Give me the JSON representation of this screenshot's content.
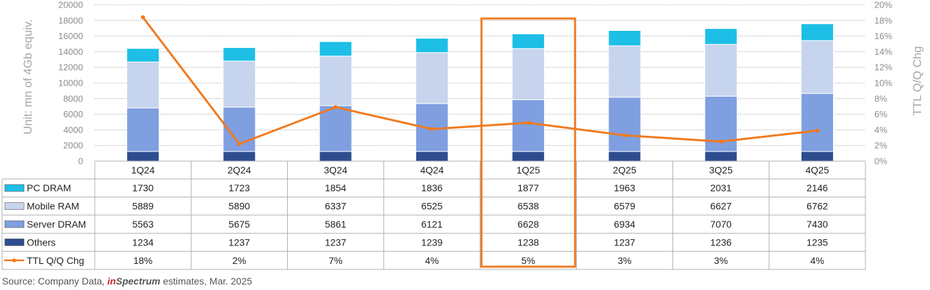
{
  "chart_data": {
    "type": "bar",
    "stacked": true,
    "categories": [
      "1Q24",
      "2Q24",
      "3Q24",
      "4Q24",
      "1Q25",
      "2Q25",
      "3Q25",
      "4Q25"
    ],
    "series": [
      {
        "name": "Others",
        "values": [
          1234,
          1237,
          1237,
          1239,
          1238,
          1237,
          1236,
          1235
        ],
        "color": "#2e4d8f"
      },
      {
        "name": "Server DRAM",
        "values": [
          5563,
          5675,
          5861,
          6121,
          6628,
          6934,
          7070,
          7430
        ],
        "color": "#7f9fe0"
      },
      {
        "name": "Mobile RAM",
        "values": [
          5889,
          5890,
          6337,
          6525,
          6538,
          6579,
          6627,
          6762
        ],
        "color": "#c7d4ee"
      },
      {
        "name": "PC DRAM",
        "values": [
          1730,
          1723,
          1854,
          1836,
          1877,
          1963,
          2031,
          2146
        ],
        "color": "#1ebfe6"
      }
    ],
    "line_series": {
      "name": "TTL Q/Q Chg",
      "values": [
        18.4,
        2.2,
        6.9,
        4.1,
        4.9,
        3.3,
        2.5,
        3.9
      ],
      "color": "#f07a1e",
      "axis": "right"
    },
    "table_rows": [
      {
        "name": "PC DRAM",
        "cells": [
          "1730",
          "1723",
          "1854",
          "1836",
          "1877",
          "1963",
          "2031",
          "2146"
        ]
      },
      {
        "name": "Mobile RAM",
        "cells": [
          "5889",
          "5890",
          "6337",
          "6525",
          "6538",
          "6579",
          "6627",
          "6762"
        ]
      },
      {
        "name": "Server DRAM",
        "cells": [
          "5563",
          "5675",
          "5861",
          "6121",
          "6628",
          "6934",
          "7070",
          "7430"
        ]
      },
      {
        "name": "Others",
        "cells": [
          "1234",
          "1237",
          "1237",
          "1239",
          "1238",
          "1237",
          "1236",
          "1235"
        ]
      },
      {
        "name": "TTL Q/Q Chg",
        "cells": [
          "18%",
          "2%",
          "7%",
          "4%",
          "5%",
          "3%",
          "3%",
          "4%"
        ]
      }
    ],
    "ylabel": "Unit: mn of 4Gb equiv.",
    "y2label": "TTL Q/Q Chg",
    "ylim": [
      0,
      20000
    ],
    "y2lim": [
      0,
      20
    ],
    "yticks": [
      "0",
      "2000",
      "4000",
      "6000",
      "8000",
      "10000",
      "12000",
      "14000",
      "16000",
      "18000",
      "20000"
    ],
    "y2ticks": [
      "0%",
      "2%",
      "4%",
      "6%",
      "8%",
      "10%",
      "12%",
      "14%",
      "16%",
      "18%",
      "20%"
    ],
    "grid": true,
    "highlight_category": "1Q25",
    "highlight_color": "#ef7b22"
  },
  "source": {
    "prefix": "Source: Company Data, ",
    "brand_part1": "in",
    "brand_part2": "Spectrum",
    "suffix": " estimates, Mar. 2025"
  }
}
